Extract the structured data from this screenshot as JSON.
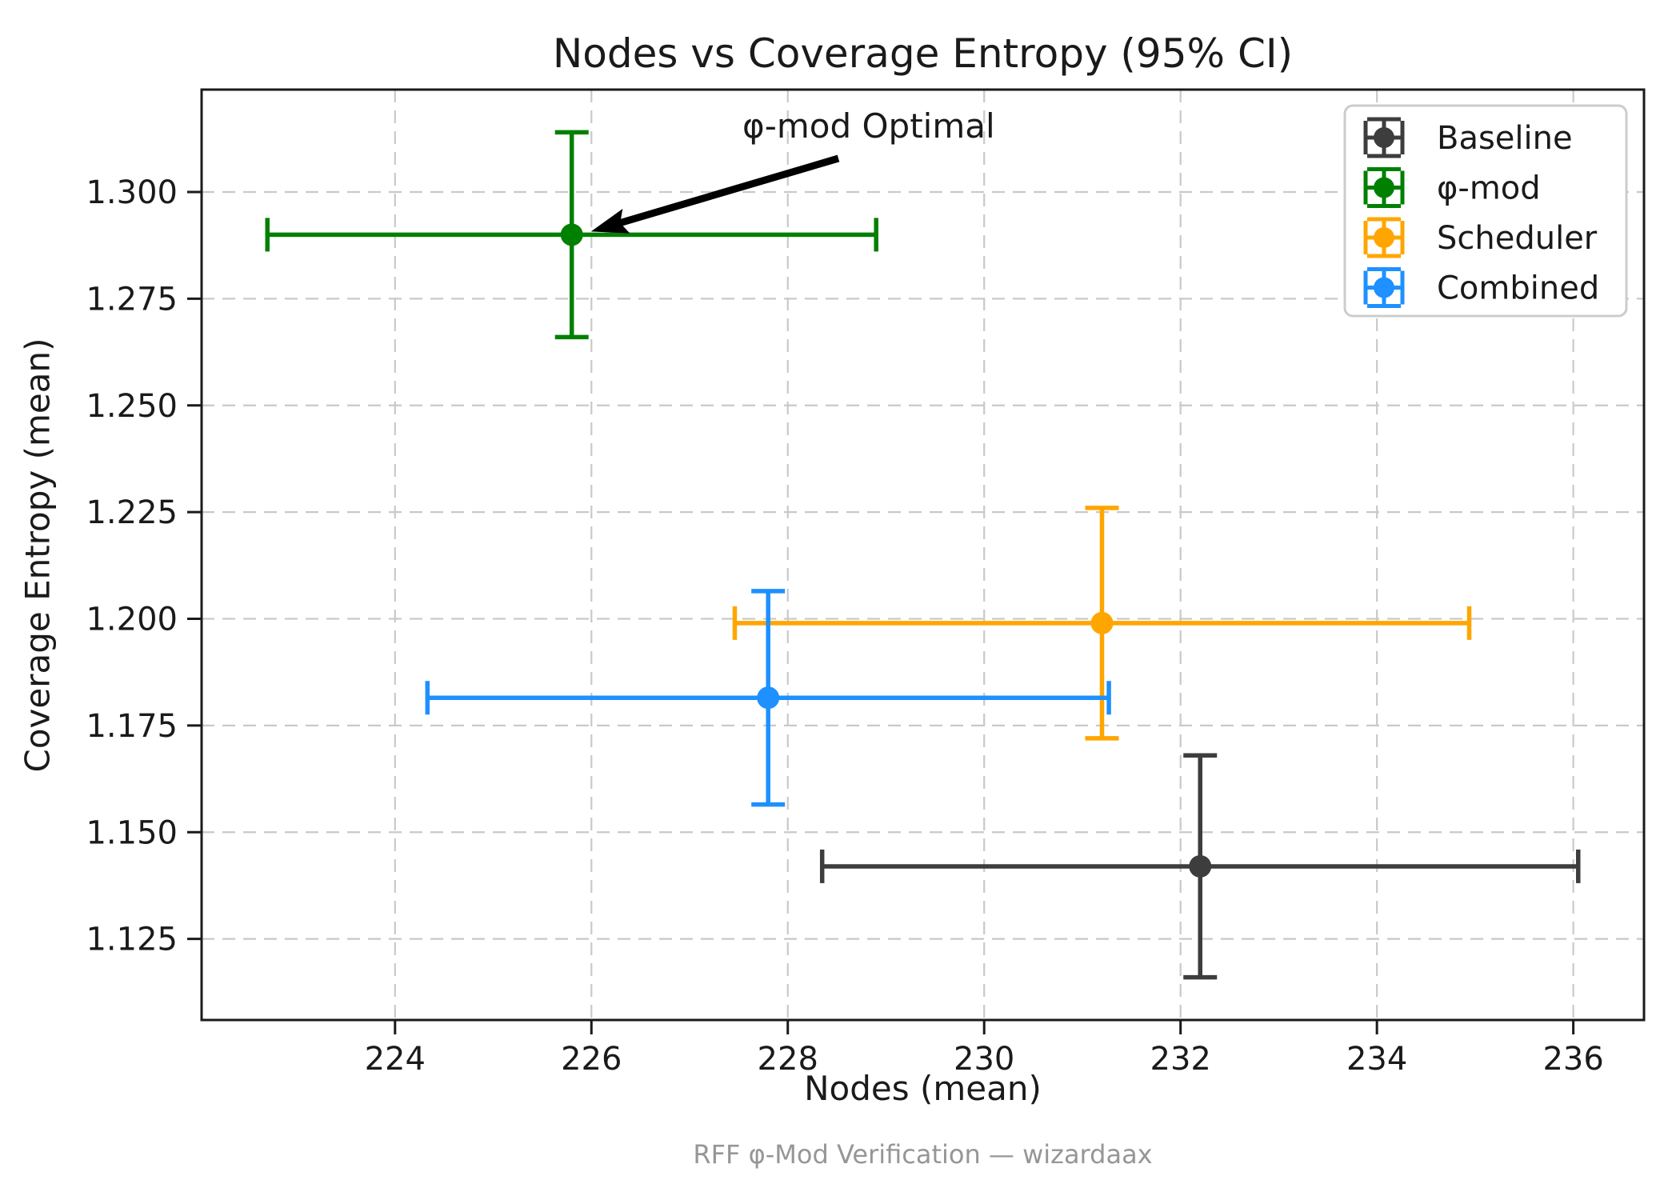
{
  "header": {
    "title": "Nodes vs Coverage Entropy (95% CI)"
  },
  "footer": {
    "caption": "RFF φ-Mod Verification — wizardaax"
  },
  "chart_data": {
    "type": "scatter",
    "title": "Nodes vs Coverage Entropy (95% CI)",
    "xlabel": "Nodes (mean)",
    "ylabel": "Coverage Entropy (mean)",
    "xlim": [
      222.03,
      236.72
    ],
    "ylim": [
      1.106,
      1.324
    ],
    "xticks": [
      "224",
      "226",
      "228",
      "230",
      "232",
      "234",
      "236"
    ],
    "yticks": [
      "1.125",
      "1.150",
      "1.175",
      "1.200",
      "1.225",
      "1.250",
      "1.275",
      "1.300"
    ],
    "grid": true,
    "grid_style": "dashed",
    "legend_position": "upper right",
    "error_bars": "95% CI",
    "series": [
      {
        "id": "baseline",
        "name": "Baseline",
        "color": "#3d3d3d",
        "x": 232.2,
        "y": 1.142,
        "xerr": 3.85,
        "yerr": 0.026
      },
      {
        "id": "phi-mod",
        "name": "φ-mod",
        "color": "#008000",
        "x": 225.8,
        "y": 1.29,
        "xerr": 3.1,
        "yerr": 0.024
      },
      {
        "id": "scheduler",
        "name": "Scheduler",
        "color": "#FFA500",
        "x": 231.2,
        "y": 1.199,
        "xerr": 3.74,
        "yerr": 0.027
      },
      {
        "id": "combined",
        "name": "Combined",
        "color": "#1E90FF",
        "x": 227.8,
        "y": 1.1815,
        "xerr": 3.47,
        "yerr": 0.025
      }
    ],
    "annotation": {
      "text": "φ-mod Optimal",
      "target_series": "phi-mod",
      "target": [
        225.8,
        1.29
      ]
    }
  }
}
